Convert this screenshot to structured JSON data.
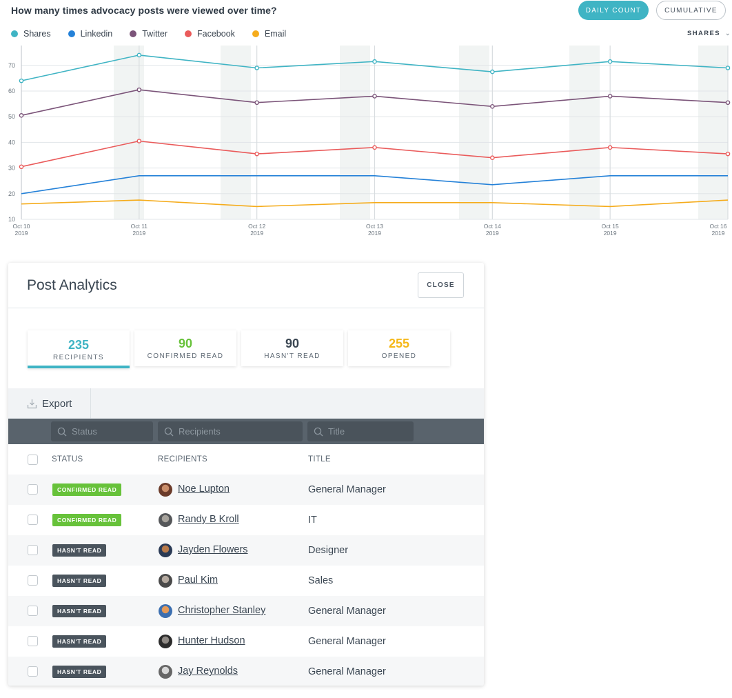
{
  "header": {
    "title": "How many times advocacy posts were viewed over time?",
    "daily_label": "DAILY COUNT",
    "cumulative_label": "CUMULATIVE",
    "metric_select": "SHARES"
  },
  "colors": {
    "accent": "#3fb4c4",
    "confirmed": "#67c23a",
    "unread_badge": "#4a545d"
  },
  "chart_data": {
    "type": "line",
    "x": [
      "Oct 10 2019",
      "Oct 11 2019",
      "Oct 12 2019",
      "Oct 13 2019",
      "Oct 14 2019",
      "Oct 15 2019",
      "Oct 16 2019"
    ],
    "x_ticks": [
      {
        "day": "Oct 10",
        "year": "2019"
      },
      {
        "day": "Oct 11",
        "year": "2019"
      },
      {
        "day": "Oct 12",
        "year": "2019"
      },
      {
        "day": "Oct 13",
        "year": "2019"
      },
      {
        "day": "Oct 14",
        "year": "2019"
      },
      {
        "day": "Oct 15",
        "year": "2019"
      },
      {
        "day": "Oct 16",
        "year": "2019"
      }
    ],
    "y_ticks": [
      "10",
      "20",
      "30",
      "40",
      "50",
      "60",
      "70"
    ],
    "ylim": [
      10,
      78
    ],
    "grid": true,
    "legend_position": "top-left",
    "series": [
      {
        "name": "Shares",
        "color": "#3fb4c4",
        "values": [
          64,
          74,
          69,
          71.5,
          67.5,
          71.5,
          69
        ],
        "markers": true
      },
      {
        "name": "Linkedin",
        "color": "#2481d8",
        "values": [
          20,
          27,
          27,
          27,
          23.5,
          27,
          27
        ],
        "markers": false
      },
      {
        "name": "Twitter",
        "color": "#7b5479",
        "values": [
          50.5,
          60.5,
          55.5,
          58,
          54,
          58,
          55.5
        ],
        "markers": true
      },
      {
        "name": "Facebook",
        "color": "#ea5b5b",
        "values": [
          30.5,
          40.5,
          35.5,
          38,
          34,
          38,
          35.5
        ],
        "markers": true
      },
      {
        "name": "Email",
        "color": "#f5ac1c",
        "values": [
          16,
          17.5,
          15,
          16.5,
          16.5,
          15,
          17.5
        ],
        "markers": false
      }
    ]
  },
  "panel": {
    "title": "Post Analytics",
    "close_label": "CLOSE",
    "stats": [
      {
        "value": "235",
        "label": "RECIPIENTS",
        "color": "#3fb4c4",
        "active": true
      },
      {
        "value": "90",
        "label": "CONFIRMED READ",
        "color": "#67c23a",
        "active": false
      },
      {
        "value": "90",
        "label": "HASN'T READ",
        "color": "#3a4652",
        "active": false
      },
      {
        "value": "255",
        "label": "OPENED",
        "color": "#f5b819",
        "active": false
      }
    ],
    "export_label": "Export",
    "filters": {
      "status_placeholder": "Status",
      "recipients_placeholder": "Recipients",
      "title_placeholder": "Title"
    },
    "columns": {
      "status": "STATUS",
      "recipients": "RECIPIENTS",
      "title": "TITLE"
    },
    "rows": [
      {
        "status": "CONFIRMED READ",
        "status_type": "confirmed",
        "name": "Noe Lupton",
        "title": "General Manager",
        "avatar_colors": [
          "#6b3b2a",
          "#c98d6a"
        ]
      },
      {
        "status": "CONFIRMED READ",
        "status_type": "confirmed",
        "name": "Randy B Kroll",
        "title": "IT",
        "avatar_colors": [
          "#55575a",
          "#a7a39c"
        ]
      },
      {
        "status": "HASN'T READ",
        "status_type": "unread",
        "name": "Jayden Flowers",
        "title": "Designer",
        "avatar_colors": [
          "#2a3a55",
          "#b87a4a"
        ]
      },
      {
        "status": "HASN'T READ",
        "status_type": "unread",
        "name": "Paul Kim",
        "title": "Sales",
        "avatar_colors": [
          "#4a4a4a",
          "#b5aaa0"
        ]
      },
      {
        "status": "HASN'T READ",
        "status_type": "unread",
        "name": "Christopher Stanley",
        "title": "General Manager",
        "avatar_colors": [
          "#3c6fb0",
          "#e59a58"
        ]
      },
      {
        "status": "HASN'T READ",
        "status_type": "unread",
        "name": "Hunter Hudson",
        "title": "General Manager",
        "avatar_colors": [
          "#2b2b2b",
          "#8f8a85"
        ]
      },
      {
        "status": "HASN'T READ",
        "status_type": "unread",
        "name": "Jay Reynolds",
        "title": "General Manager",
        "avatar_colors": [
          "#666",
          "#d8d8d8"
        ]
      }
    ]
  }
}
